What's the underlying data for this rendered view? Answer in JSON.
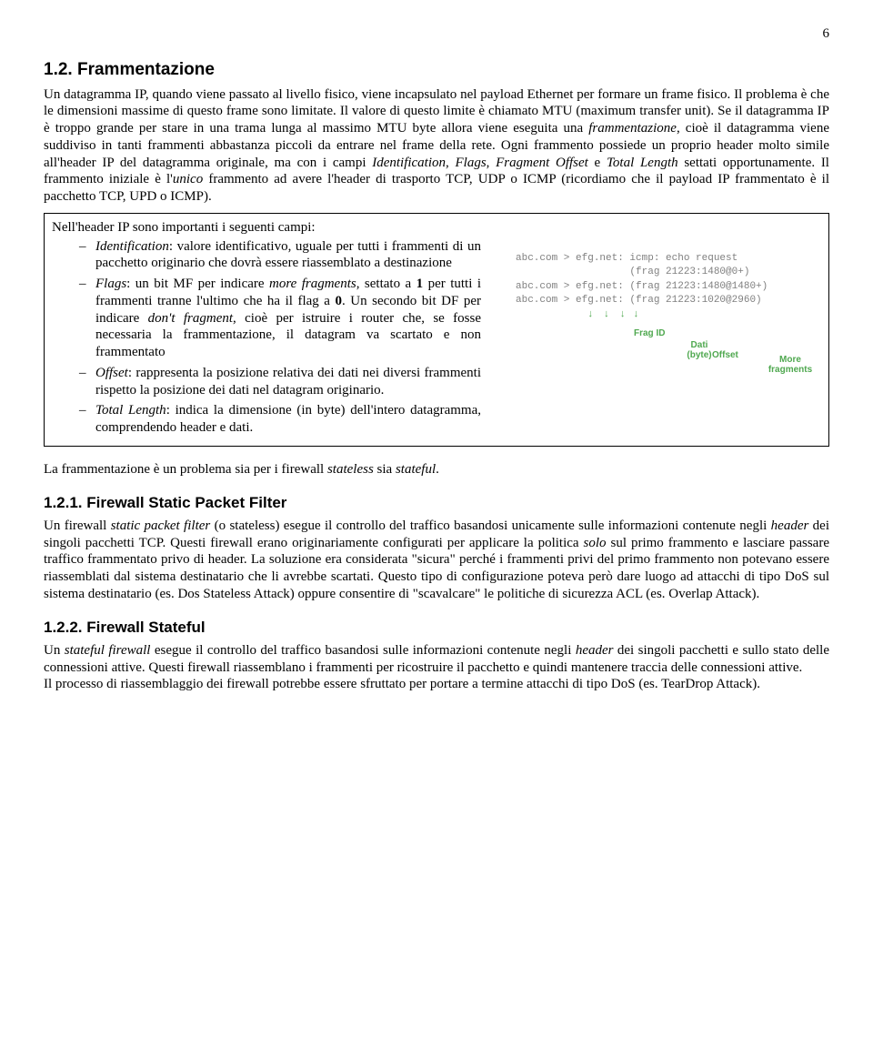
{
  "page_number": "6",
  "s12": {
    "number": "1.2.",
    "title": "Frammentazione",
    "intro_para_html": "Un datagramma IP, quando viene passato al livello fisico, viene incapsulato nel payload Ethernet per formare un frame fisico. Il problema è che le dimensioni massime di questo frame sono limitate. Il valore di questo limite è chiamato MTU (maximum transfer unit). Se il datagramma IP è troppo grande per stare in una trama lunga al massimo MTU byte allora viene eseguita una <em>frammentazione</em>, cioè il datagramma viene suddiviso in tanti frammenti abbastanza piccoli da entrare nel frame della rete. Ogni frammento possiede un proprio header molto simile all'header IP del datagramma originale, ma con i campi <em>Identification</em>, <em>Flags</em>, <em>Fragment Offset</em> e <em>Total Length</em> settati opportunamente. Il frammento iniziale è l'<em>unico</em> frammento ad avere l'header di trasporto TCP, UDP o ICMP (ricordiamo che il payload IP frammentato è il pacchetto TCP, UPD o ICMP).",
    "box_intro": "Nell'header IP sono importanti i seguenti campi:",
    "fields": [
      "<em>Identification</em>: valore identificativo, uguale per tutti i frammenti di un pacchetto originario che dovrà essere riassemblato a destinazione",
      "<em>Flags</em>: un bit MF per indicare <em>more fragments</em>, settato a <b>1</b> per tutti i frammenti tranne l'ultimo che ha il flag a <b>0</b>. Un secondo bit DF per indicare <em>don't fragment</em>, cioè per istruire i router che, se fosse necessaria la frammentazione, il datagram va scartato e non frammentato",
      "<em>Offset</em>: rappresenta la posizione relativa dei dati nei diversi frammenti rispetto la posizione dei dati nel datagram originario.",
      "<em>Total Length</em>: indica la dimensione (in byte) dell'intero datagramma, comprendendo header e dati."
    ],
    "diagram": {
      "lines": [
        "abc.com > efg.net: icmp: echo request",
        "                   (frag 21223:1480@0+)",
        "",
        "abc.com > efg.net: (frag 21223:1480@1480+)",
        "",
        "abc.com > efg.net: (frag 21223:1020@2960)"
      ],
      "labels": [
        "Frag ID",
        "Dati (byte)",
        "Offset",
        "More fragments"
      ]
    },
    "after_box_html": "La frammentazione è un problema sia per i firewall <em>stateless</em> sia <em>stateful</em>."
  },
  "s121": {
    "number": "1.2.1.",
    "title": "Firewall Static Packet Filter",
    "para_html": "Un firewall <em>static packet filter</em> (o stateless) esegue il controllo del traffico basandosi unicamente sulle informazioni contenute negli <em>header</em> dei singoli pacchetti TCP.  Questi firewall erano originariamente configurati per applicare la politica <em>solo</em> sul primo frammento e lasciare passare traffico frammentato privo di header. La soluzione era considerata \"sicura\" perché i frammenti privi del primo frammento non potevano essere riassemblati dal sistema destinatario che li avrebbe scartati. Questo tipo di configurazione poteva però dare luogo ad attacchi di tipo DoS sul sistema destinatario (es. Dos Stateless Attack) oppure consentire di \"scavalcare\" le politiche di sicurezza ACL (es. Overlap Attack)."
  },
  "s122": {
    "number": "1.2.2.",
    "title": "Firewall Stateful",
    "para_html": "Un <em>stateful firewall</em> esegue il controllo del traffico basandosi sulle informazioni contenute negli <em>header</em> dei singoli pacchetti e sullo stato delle connessioni attive. Questi firewall riassemblano i frammenti per ricostruire il pacchetto e quindi mantenere traccia delle connessioni attive.<br>Il processo di riassemblaggio dei firewall potrebbe essere sfruttato per portare a termine attacchi di tipo DoS (es. TearDrop Attack)."
  }
}
